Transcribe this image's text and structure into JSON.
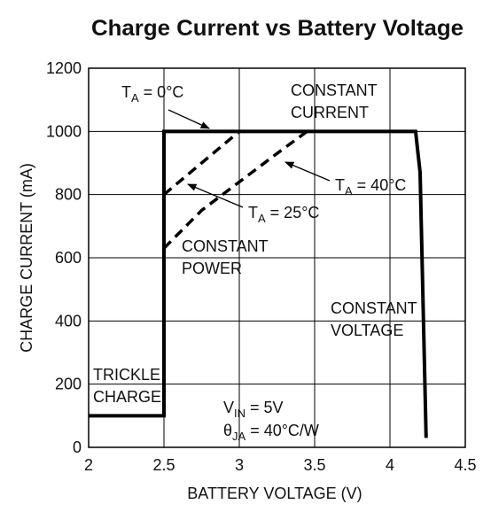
{
  "chart_data": {
    "type": "line",
    "title": "Charge Current vs Battery Voltage",
    "x_label": "BATTERY VOLTAGE (V)",
    "y_label": "CHARGE CURRENT (mA)",
    "xlim": [
      2,
      4.5
    ],
    "xticks": [
      2,
      2.5,
      3,
      3.5,
      4,
      4.5
    ],
    "ylim": [
      0,
      1200
    ],
    "yticks": [
      0,
      200,
      400,
      600,
      800,
      1000,
      1200
    ],
    "grid": true,
    "series": [
      {
        "color": "#000000",
        "dashed": false,
        "x": [
          2,
          2.5,
          2.5,
          4.17,
          4.2,
          4.24
        ],
        "values": [
          100,
          100,
          1000,
          1000,
          870,
          30
        ]
      },
      {
        "color": "#000000",
        "dashed": true,
        "x": [
          2.5,
          2.6,
          2.75,
          2.9,
          3
        ],
        "values": [
          800,
          840,
          900,
          960,
          1000
        ]
      },
      {
        "color": "#000000",
        "dashed": true,
        "x": [
          2.5,
          2.75,
          3,
          3.25,
          3.45
        ],
        "values": [
          630,
          750,
          840,
          930,
          1000
        ]
      }
    ],
    "annotations": [
      {
        "parts": [
          "T",
          "A",
          " = 0°C"
        ]
      },
      {
        "parts": [
          "T",
          "A",
          " = 40°C"
        ]
      },
      {
        "parts": [
          "T",
          "A",
          " = 25°C"
        ]
      },
      {
        "parts": [
          "V",
          "IN",
          " = 5V"
        ]
      },
      {
        "parts": [
          "θ",
          "JA",
          " = 40°C/W"
        ]
      }
    ],
    "region_labels": [
      {
        "lines": [
          "CONSTANT",
          "CURRENT"
        ]
      },
      {
        "lines": [
          "CONSTANT",
          "POWER"
        ]
      },
      {
        "lines": [
          "CONSTANT",
          "VOLTAGE"
        ]
      },
      {
        "lines": [
          "TRICKLE",
          "CHARGE"
        ]
      }
    ]
  }
}
